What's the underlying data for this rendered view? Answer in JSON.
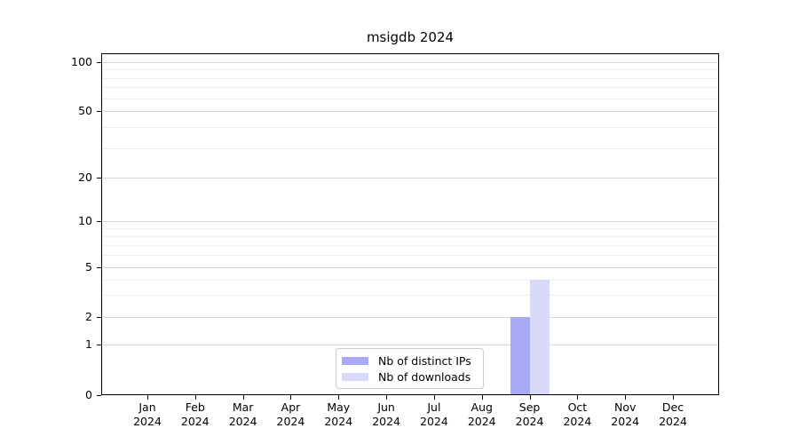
{
  "chart_data": {
    "type": "bar",
    "title": "msigdb 2024",
    "x": {
      "months": [
        "Jan",
        "Feb",
        "Mar",
        "Apr",
        "May",
        "Jun",
        "Jul",
        "Aug",
        "Sep",
        "Oct",
        "Nov",
        "Dec"
      ],
      "year": "2024"
    },
    "y": {
      "scale": "log-like",
      "ticks": [
        100,
        50,
        20,
        10,
        5,
        2,
        1,
        0
      ],
      "minor_gridlines": [
        3,
        4,
        6,
        7,
        8,
        9,
        30,
        40,
        60,
        70,
        80,
        90
      ],
      "ylim": [
        0,
        100
      ]
    },
    "series": [
      {
        "name": "Nb of distinct IPs",
        "color": "#a9a9f6",
        "values": [
          0,
          0,
          0,
          0,
          0,
          0,
          0,
          0,
          2,
          0,
          0,
          0
        ]
      },
      {
        "name": "Nb of downloads",
        "color": "#d9d9fa",
        "values": [
          0,
          0,
          0,
          0,
          0,
          0,
          0,
          0,
          4,
          0,
          0,
          0
        ]
      }
    ],
    "legend": {
      "position": "lower-center-inside",
      "entries": [
        "Nb of distinct IPs",
        "Nb of downloads"
      ]
    },
    "grid": true,
    "colors": {
      "spine": "#000000",
      "grid_major": "#d9d9d9",
      "grid_minor": "#ededed",
      "background": "#ffffff"
    }
  }
}
